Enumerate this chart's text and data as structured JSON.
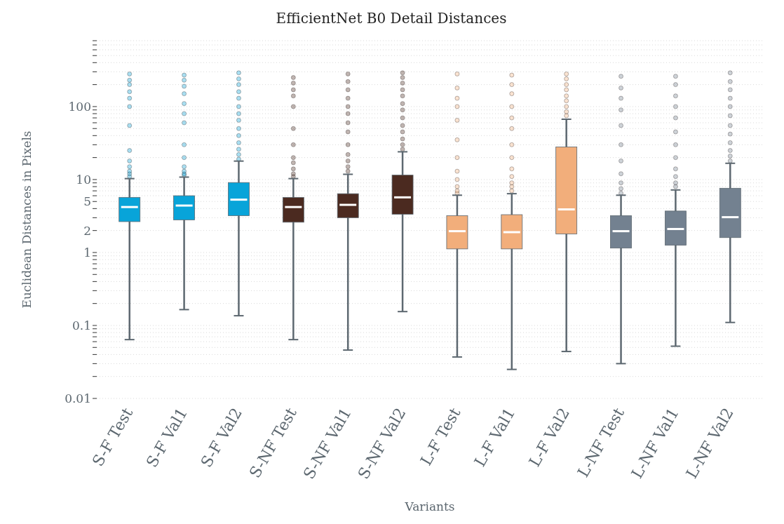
{
  "chart_data": {
    "type": "box",
    "title": "EfficientNet B0 Detail Distances",
    "xlabel": "Variants",
    "ylabel": "Euclidean Distances in Pixels",
    "categories": [
      "S-F Test",
      "S-F Val1",
      "S-F Val2",
      "S-NF Test",
      "S-NF Val1",
      "S-NF Val2",
      "L-F Test",
      "L-F Val1",
      "L-F Val2",
      "L-NF Test",
      "L-NF Val1",
      "L-NF Val2"
    ],
    "colors": [
      "#08a4d9",
      "#08a4d9",
      "#08a4d9",
      "#4b2a20",
      "#4b2a20",
      "#4b2a20",
      "#f2ae7b",
      "#f2ae7b",
      "#f2ae7b",
      "#738190",
      "#738190",
      "#738190"
    ],
    "boxes": [
      {
        "low": 0.064,
        "q1": 2.65,
        "median": 4.2,
        "q3": 5.7,
        "high": 10.3,
        "outliers": [
          11,
          12,
          13,
          15,
          18,
          25,
          55,
          100,
          130,
          160,
          200,
          230,
          280
        ]
      },
      {
        "low": 0.165,
        "q1": 2.8,
        "median": 4.4,
        "q3": 6.0,
        "high": 10.8,
        "outliers": [
          11.5,
          12,
          13,
          15,
          20,
          30,
          60,
          80,
          110,
          150,
          190,
          230,
          270
        ]
      },
      {
        "low": 0.136,
        "q1": 3.2,
        "median": 5.3,
        "q3": 9.1,
        "high": 17.9,
        "outliers": [
          19,
          22,
          26,
          32,
          40,
          50,
          65,
          80,
          100,
          130,
          160,
          200,
          240,
          290
        ]
      },
      {
        "low": 0.064,
        "q1": 2.6,
        "median": 4.2,
        "q3": 5.7,
        "high": 10.3,
        "outliers": [
          11,
          12,
          14,
          17,
          20,
          30,
          50,
          100,
          140,
          170,
          210,
          250
        ]
      },
      {
        "low": 0.046,
        "q1": 3.0,
        "median": 4.5,
        "q3": 6.4,
        "high": 11.8,
        "outliers": [
          13,
          15,
          18,
          22,
          30,
          45,
          60,
          80,
          100,
          130,
          170,
          220,
          280
        ]
      },
      {
        "low": 0.155,
        "q1": 3.35,
        "median": 5.7,
        "q3": 11.5,
        "high": 24,
        "outliers": [
          26,
          30,
          36,
          45,
          55,
          70,
          90,
          110,
          140,
          170,
          210,
          250,
          290
        ]
      },
      {
        "low": 0.037,
        "q1": 1.12,
        "median": 1.96,
        "q3": 3.2,
        "high": 6.1,
        "outliers": [
          6.5,
          7,
          8,
          10,
          13,
          20,
          35,
          65,
          100,
          130,
          180,
          280
        ]
      },
      {
        "low": 0.025,
        "q1": 1.12,
        "median": 1.9,
        "q3": 3.3,
        "high": 6.4,
        "outliers": [
          7,
          8,
          9,
          11,
          14,
          20,
          30,
          50,
          70,
          100,
          150,
          200,
          270
        ]
      },
      {
        "low": 0.044,
        "q1": 1.8,
        "median": 3.9,
        "q3": 28,
        "high": 67,
        "outliers": [
          75,
          85,
          100,
          120,
          140,
          170,
          200,
          240,
          280
        ]
      },
      {
        "low": 0.03,
        "q1": 1.15,
        "median": 1.96,
        "q3": 3.2,
        "high": 6.1,
        "outliers": [
          6.5,
          7.5,
          9,
          12,
          18,
          30,
          55,
          90,
          130,
          180,
          260
        ]
      },
      {
        "low": 0.052,
        "q1": 1.26,
        "median": 2.1,
        "q3": 3.7,
        "high": 7.2,
        "outliers": [
          8,
          9,
          11,
          14,
          20,
          30,
          45,
          70,
          100,
          140,
          200,
          260
        ]
      },
      {
        "low": 0.11,
        "q1": 1.6,
        "median": 3.05,
        "q3": 7.6,
        "high": 16.7,
        "outliers": [
          18,
          21,
          25,
          32,
          42,
          55,
          75,
          100,
          130,
          170,
          220,
          290
        ]
      }
    ],
    "log": true,
    "grid": "y",
    "ylim": [
      0.01,
      800
    ],
    "yticks": [
      0.01,
      {
        "value": 0.02,
        "label": null
      },
      {
        "value": 0.03,
        "label": null
      },
      {
        "value": 0.04,
        "label": null
      },
      {
        "value": 0.05,
        "label": null
      },
      {
        "value": 0.06,
        "label": null
      },
      {
        "value": 0.07,
        "label": null
      },
      {
        "value": 0.08,
        "label": null
      },
      {
        "value": 0.09,
        "label": null
      },
      0.1,
      {
        "value": 0.2,
        "label": null
      },
      {
        "value": 0.3,
        "label": null
      },
      {
        "value": 0.4,
        "label": null
      },
      {
        "value": 0.5,
        "label": null
      },
      {
        "value": 0.6,
        "label": null
      },
      {
        "value": 0.7,
        "label": null
      },
      {
        "value": 0.8,
        "label": null
      },
      {
        "value": 0.9,
        "label": null
      },
      1,
      2,
      {
        "value": 3,
        "label": null
      },
      {
        "value": 4,
        "label": null
      },
      5,
      {
        "value": 6,
        "label": null
      },
      {
        "value": 7,
        "label": null
      },
      {
        "value": 8,
        "label": null
      },
      {
        "value": 9,
        "label": null
      },
      10,
      {
        "value": 20,
        "label": null
      },
      {
        "value": 30,
        "label": null
      },
      {
        "value": 40,
        "label": null
      },
      {
        "value": 50,
        "label": null
      },
      {
        "value": 60,
        "label": null
      },
      {
        "value": 70,
        "label": null
      },
      {
        "value": 80,
        "label": null
      },
      {
        "value": 90,
        "label": null
      },
      100,
      {
        "value": 200,
        "label": null
      },
      {
        "value": 300,
        "label": null
      },
      {
        "value": 400,
        "label": null
      },
      {
        "value": 500,
        "label": null
      },
      {
        "value": 600,
        "label": null
      },
      {
        "value": 700,
        "label": null
      },
      {
        "value": 800,
        "label": null
      }
    ]
  }
}
